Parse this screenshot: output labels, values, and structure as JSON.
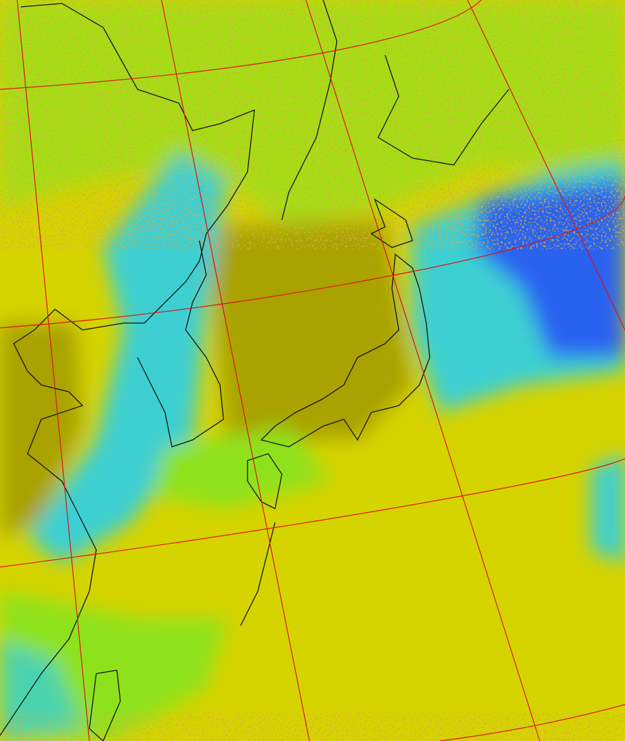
{
  "map": {
    "type": "satellite-infrared-false-color",
    "colors": {
      "clear_warm": "#d6d400",
      "low_cloud": "#a9a200",
      "mid_cloud": "#8ee21a",
      "high_cloud": "#3ccfd2",
      "deep_cloud": "#2a62f0",
      "noise": "#b06a10",
      "graticule": "#e01010",
      "coastline": "#101010"
    },
    "has_graticule": true,
    "has_coastlines": true
  }
}
